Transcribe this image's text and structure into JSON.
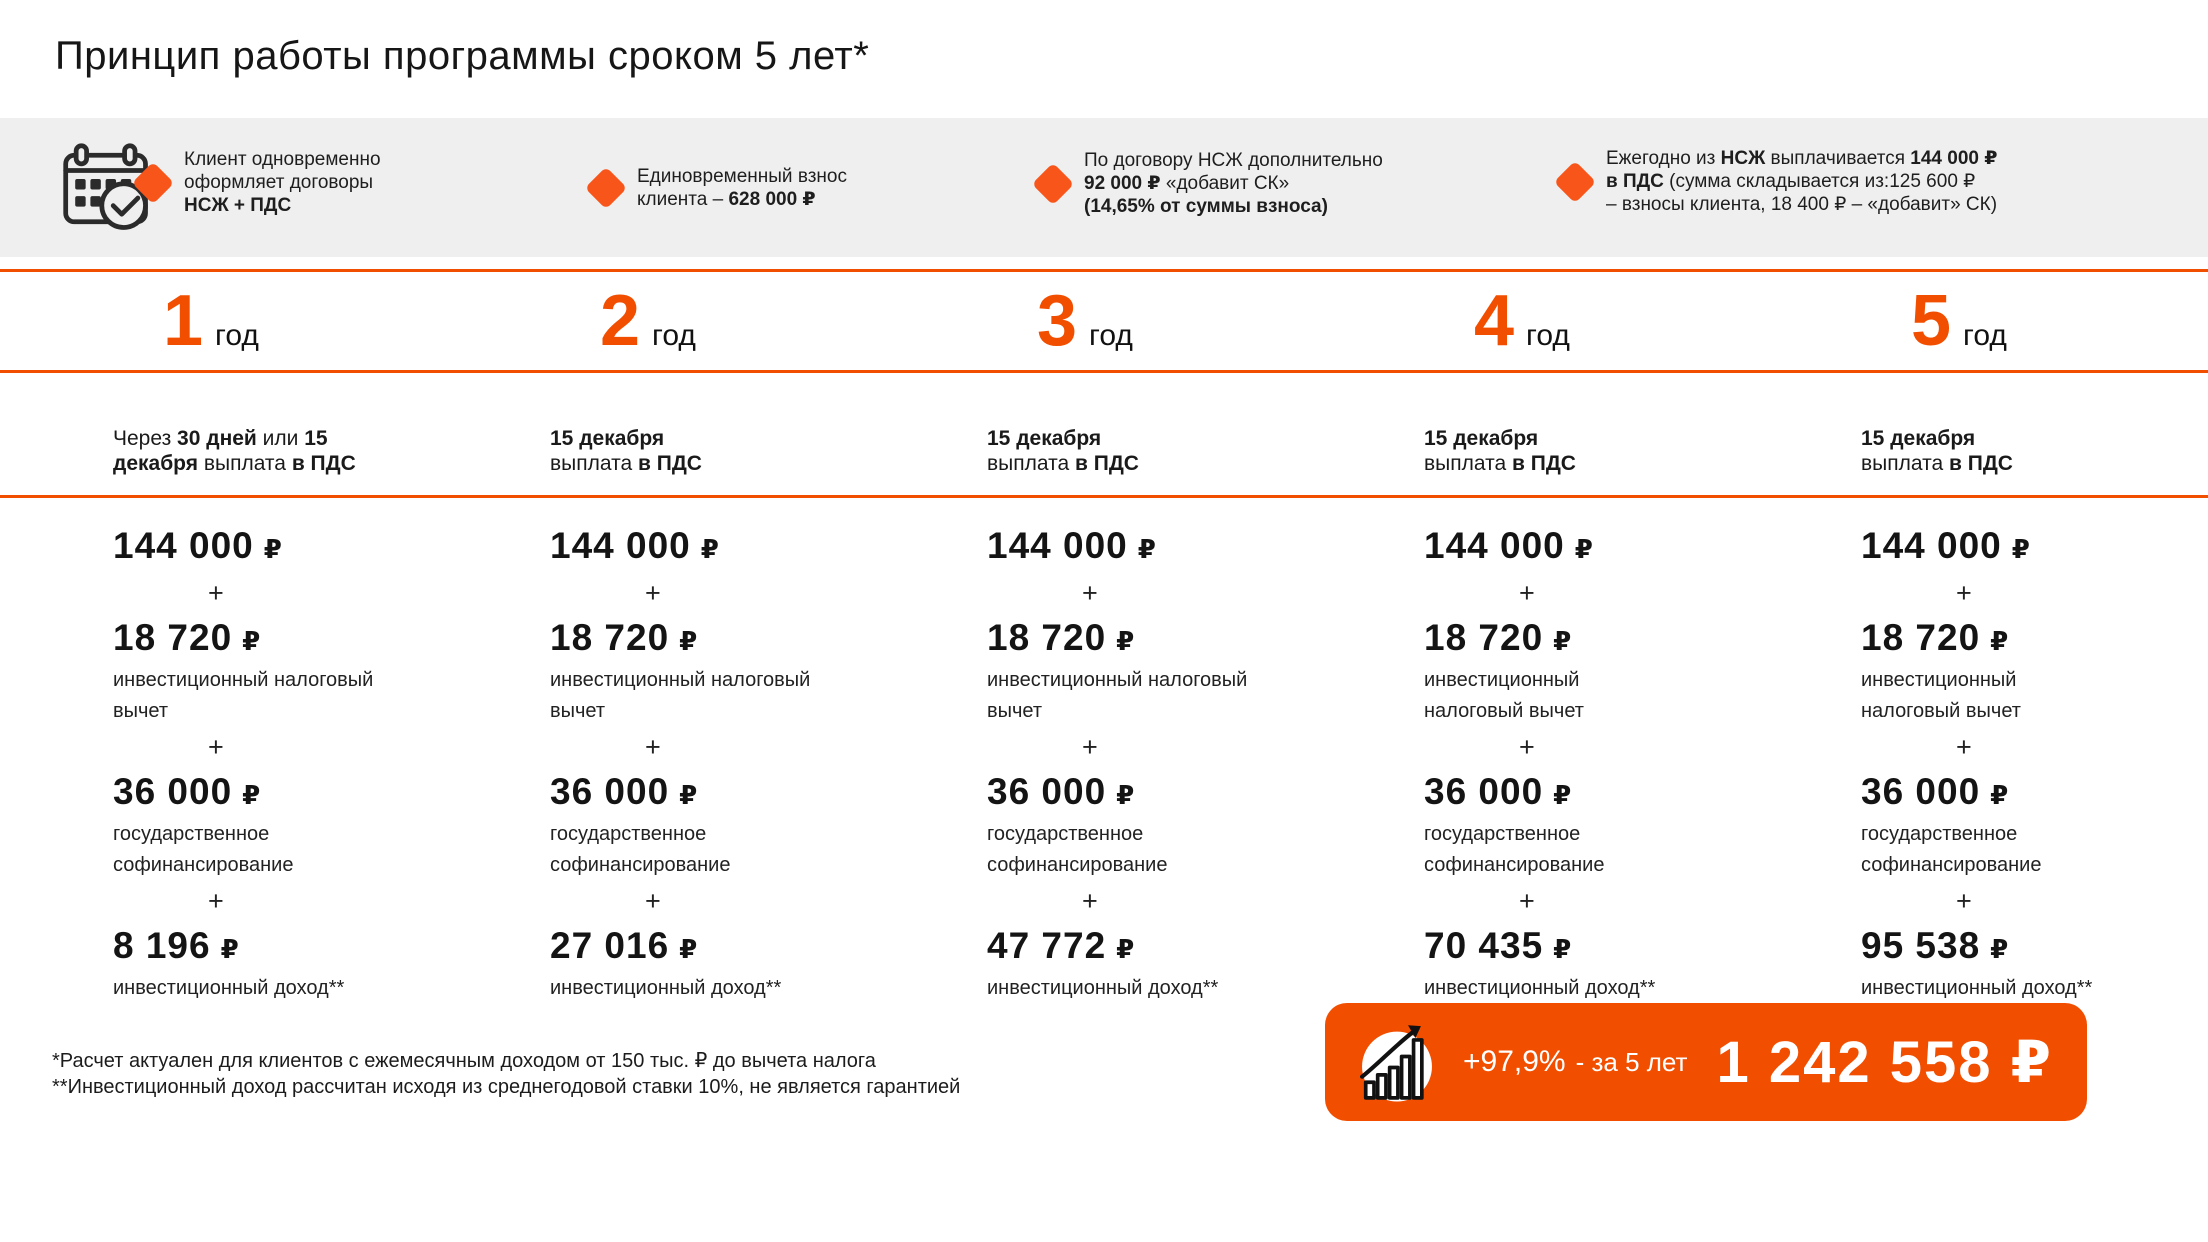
{
  "title": "Принцип работы программы сроком 5 лет*",
  "colors": {
    "accent": "#F24E00",
    "diamond": "#F8551A",
    "band_bg": "#EFEFEF"
  },
  "header": {
    "calendar_icon": "calendar-check-icon",
    "bullets": [
      {
        "lines": [
          [
            {
              "t": "Клиент одновременно",
              "b": false
            }
          ],
          [
            {
              "t": "оформляет договоры",
              "b": false
            }
          ],
          [
            {
              "t": "НСЖ + ПДС",
              "b": true
            }
          ]
        ]
      },
      {
        "lines": [
          [
            {
              "t": "Единовременный взнос",
              "b": false
            }
          ],
          [
            {
              "t": "клиента – ",
              "b": false
            },
            {
              "t": "628 000 ₽",
              "b": true
            }
          ]
        ]
      },
      {
        "lines": [
          [
            {
              "t": "По договору НСЖ дополнительно",
              "b": false
            }
          ],
          [
            {
              "t": "92 000 ₽",
              "b": true
            },
            {
              "t": " «добавит СК»",
              "b": false
            }
          ],
          [
            {
              "t": "(14,65%  от суммы взноса)",
              "b": true
            }
          ]
        ]
      },
      {
        "lines": [
          [
            {
              "t": "Ежегодно из ",
              "b": false
            },
            {
              "t": "НСЖ",
              "b": true
            },
            {
              "t": " выплачивается ",
              "b": false
            },
            {
              "t": "144 000 ₽",
              "b": true
            }
          ],
          [
            {
              "t": "в ПДС",
              "b": true
            },
            {
              "t": " (сумма складывается из:125 600 ₽",
              "b": false
            }
          ],
          [
            {
              "t": "– взносы клиента, 18 400 ₽ – «добавит» СК)",
              "b": false
            }
          ]
        ]
      }
    ]
  },
  "plus_sign": "+",
  "columns": [
    {
      "year": "1",
      "year_word": "год",
      "date_lines": [
        [
          {
            "t": "Через ",
            "b": false
          },
          {
            "t": "30 дней",
            "b": true
          },
          {
            "t": " или ",
            "b": false
          },
          {
            "t": "15",
            "b": true
          }
        ],
        [
          {
            "t": "декабря",
            "b": true
          },
          {
            "t": " выплата ",
            "b": false
          },
          {
            "t": "в ПДС",
            "b": true
          }
        ]
      ],
      "items": [
        {
          "amount": "144 000",
          "cur": "₽",
          "label_lines": []
        },
        {
          "amount": "18 720",
          "cur": "₽",
          "label_lines": [
            "инвестиционный налоговый",
            "вычет"
          ]
        },
        {
          "amount": "36 000",
          "cur": "₽",
          "label_lines": [
            "государственное",
            "софинансирование"
          ]
        },
        {
          "amount": "8 196",
          "cur": "₽",
          "label_lines": [
            "инвестиционный доход**"
          ]
        }
      ]
    },
    {
      "year": "2",
      "year_word": "год",
      "date_lines": [
        [
          {
            "t": "15 декабря",
            "b": true
          }
        ],
        [
          {
            "t": "выплата ",
            "b": false
          },
          {
            "t": "в ПДС",
            "b": true
          }
        ]
      ],
      "items": [
        {
          "amount": "144 000",
          "cur": "₽",
          "label_lines": []
        },
        {
          "amount": "18 720",
          "cur": "₽",
          "label_lines": [
            "инвестиционный налоговый",
            "вычет"
          ]
        },
        {
          "amount": "36 000",
          "cur": "₽",
          "label_lines": [
            "государственное",
            "софинансирование"
          ]
        },
        {
          "amount": "27 016",
          "cur": "₽",
          "label_lines": [
            "инвестиционный доход**"
          ]
        }
      ]
    },
    {
      "year": "3",
      "year_word": "год",
      "date_lines": [
        [
          {
            "t": "15 декабря",
            "b": true
          }
        ],
        [
          {
            "t": "выплата ",
            "b": false
          },
          {
            "t": "в ПДС",
            "b": true
          }
        ]
      ],
      "items": [
        {
          "amount": "144 000",
          "cur": "₽",
          "label_lines": []
        },
        {
          "amount": "18 720",
          "cur": "₽",
          "label_lines": [
            "инвестиционный налоговый",
            "вычет"
          ]
        },
        {
          "amount": "36 000",
          "cur": "₽",
          "label_lines": [
            "государственное",
            "софинансирование"
          ]
        },
        {
          "amount": "47 772",
          "cur": "₽",
          "label_lines": [
            "инвестиционный доход**"
          ]
        }
      ]
    },
    {
      "year": "4",
      "year_word": "год",
      "date_lines": [
        [
          {
            "t": "15 декабря",
            "b": true
          }
        ],
        [
          {
            "t": "выплата ",
            "b": false
          },
          {
            "t": "в ПДС",
            "b": true
          }
        ]
      ],
      "items": [
        {
          "amount": "144 000",
          "cur": "₽",
          "label_lines": []
        },
        {
          "amount": "18 720",
          "cur": "₽",
          "label_lines": [
            "инвестиционный",
            "налоговый вычет"
          ]
        },
        {
          "amount": "36 000",
          "cur": "₽",
          "label_lines": [
            "государственное",
            "софинансирование"
          ]
        },
        {
          "amount": "70 435",
          "cur": "₽",
          "label_lines": [
            "инвестиционный доход**"
          ]
        }
      ]
    },
    {
      "year": "5",
      "year_word": "год",
      "date_lines": [
        [
          {
            "t": "15 декабря",
            "b": true
          }
        ],
        [
          {
            "t": "выплата ",
            "b": false
          },
          {
            "t": "в ПДС",
            "b": true
          }
        ]
      ],
      "items": [
        {
          "amount": "144 000",
          "cur": "₽",
          "label_lines": []
        },
        {
          "amount": "18 720",
          "cur": "₽",
          "label_lines": [
            "инвестиционный",
            "налоговый вычет"
          ]
        },
        {
          "amount": "36 000",
          "cur": "₽",
          "label_lines": [
            "государственное",
            "софинансирование"
          ]
        },
        {
          "amount": "95 538",
          "cur": "₽",
          "label_lines": [
            "инвестиционный доход**"
          ]
        }
      ]
    }
  ],
  "footnotes": [
    "*Расчет актуален для клиентов с ежемесячным доходом от 150 тыс. ₽ до вычета налога",
    "**Инвестиционный доход рассчитан исходя из среднегодовой ставки  10%, не является гарантией"
  ],
  "badge": {
    "icon": "growth-chart-icon",
    "percent": "+97,9%",
    "period": "- за 5 лет",
    "total": "1 242 558 ₽"
  }
}
